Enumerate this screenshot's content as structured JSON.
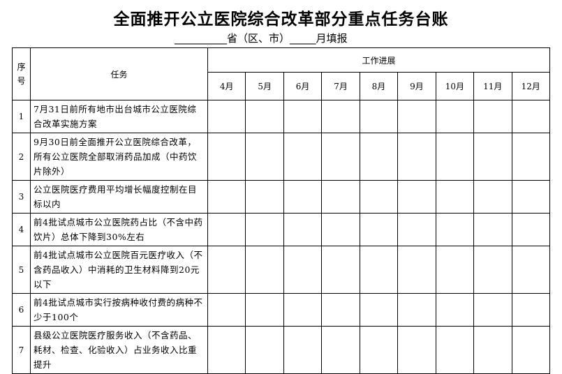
{
  "title": "全面推开公立医院综合改革部分重点任务台账",
  "subtitle": "__________省（区、市）_____月填报",
  "headers": {
    "seq": "序号",
    "task": "任务",
    "progress": "工作进展",
    "months": [
      "4月",
      "5月",
      "6月",
      "7月",
      "8月",
      "9月",
      "10月",
      "11月",
      "12月"
    ]
  },
  "rows": [
    {
      "seq": "1",
      "task": "7月31日前所有地市出台城市公立医院综合改革实施方案"
    },
    {
      "seq": "2",
      "task": "9月30日前全面推开公立医院综合改革，所有公立医院全部取消药品加成（中药饮片除外）"
    },
    {
      "seq": "3",
      "task": "公立医院医疗费用平均增长幅度控制在目标以内"
    },
    {
      "seq": "4",
      "task": "前4批试点城市公立医院药占比（不含中药饮片）总体下降到30%左右"
    },
    {
      "seq": "5",
      "task": "前4批试点城市公立医院百元医疗收入（不含药品收入）中消耗的卫生材料降到20元以下"
    },
    {
      "seq": "6",
      "task": "前4批试点城市实行按病种收付费的病种不少于100个"
    },
    {
      "seq": "7",
      "task": "县级公立医院医疗服务收入（不含药品、耗材、检查、化验收入）占业务收入比重提升"
    }
  ]
}
